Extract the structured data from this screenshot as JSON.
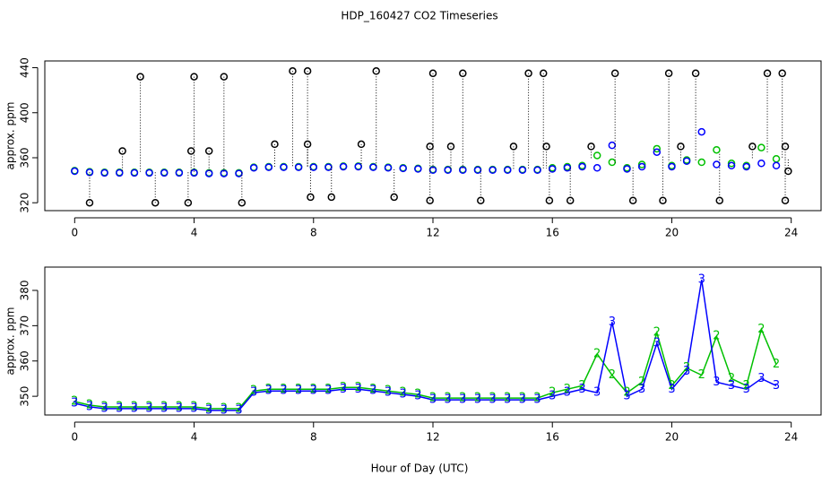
{
  "chart_data": [
    {
      "type": "scatter",
      "title": "HDP_160427  CO2 Timeseries",
      "ylabel": "approx. ppm",
      "xlim": [
        -1,
        25
      ],
      "ylim": [
        313,
        446
      ],
      "xticks": [
        0,
        4,
        8,
        12,
        16,
        20,
        24
      ],
      "yticks": [
        320,
        360,
        400,
        440
      ],
      "x": [
        0,
        0.5,
        1,
        1.5,
        2,
        2.5,
        3,
        3.5,
        4,
        4.5,
        5,
        5.5,
        6,
        6.5,
        7,
        7.5,
        8,
        8.5,
        9,
        9.5,
        10,
        10.5,
        11,
        11.5,
        12,
        12.5,
        13,
        13.5,
        14,
        14.5,
        15,
        15.5,
        16,
        16.5,
        17,
        17.5,
        18,
        18.5,
        19,
        19.5,
        20,
        20.5,
        21,
        21.5,
        22,
        22.5,
        23,
        23.5
      ],
      "series": [
        {
          "color": "#00c000",
          "values": [
            348.5,
            347.5,
            347,
            347,
            347,
            347,
            347,
            347,
            347,
            346.5,
            346.5,
            346.5,
            351.5,
            352,
            352,
            352,
            352,
            352,
            352.5,
            352.5,
            352,
            351.5,
            351,
            350.5,
            349.5,
            349.5,
            349.5,
            349.5,
            349.5,
            349.5,
            349.5,
            349.5,
            351,
            352,
            353,
            362,
            356,
            351,
            354,
            368,
            353,
            358,
            356,
            367,
            355,
            353,
            369,
            359
          ]
        },
        {
          "color": "#0000ff",
          "values": [
            348,
            347,
            346.5,
            346.5,
            346.5,
            346.5,
            346.5,
            346.5,
            346.5,
            346,
            346,
            346,
            351,
            351.5,
            351.5,
            351.5,
            351.5,
            351.5,
            352,
            352,
            351.5,
            351,
            350.5,
            350,
            349,
            349,
            349,
            349,
            349,
            349,
            349,
            349,
            350,
            351,
            352,
            351,
            371,
            350,
            352,
            365,
            352,
            357,
            383,
            354,
            353,
            352,
            355,
            353
          ]
        },
        {
          "color": "#000000",
          "drop": true,
          "x": [
            0.5,
            1.6,
            2.2,
            2.7,
            3.8,
            3.9,
            4,
            4.5,
            5,
            5.6,
            6.7,
            7.3,
            7.8,
            7.8,
            7.9,
            8.6,
            9.6,
            10.1,
            10.7,
            11.9,
            11.9,
            12,
            12.6,
            13,
            13.6,
            14.7,
            15.2,
            15.7,
            15.8,
            15.9,
            16.6,
            17.3,
            18.1,
            18.7,
            19.7,
            19.9,
            20.3,
            20.8,
            21.6,
            22.7,
            23.2,
            23.7,
            23.8,
            23.8,
            23.9
          ],
          "values": [
            320,
            366,
            432,
            320,
            320,
            366,
            432,
            366,
            432,
            320,
            372,
            437,
            437,
            372,
            325,
            325,
            372,
            437,
            325,
            322,
            370,
            435,
            370,
            435,
            322,
            370,
            435,
            435,
            370,
            322,
            322,
            370,
            435,
            322,
            322,
            435,
            370,
            435,
            322,
            370,
            435,
            435,
            370,
            322,
            348
          ]
        }
      ]
    },
    {
      "type": "line",
      "xlabel": "Hour of Day (UTC)",
      "ylabel": "approx. ppm",
      "xlim": [
        -1,
        25
      ],
      "ylim": [
        344.7,
        386.6
      ],
      "xticks": [
        0,
        4,
        8,
        12,
        16,
        20,
        24
      ],
      "yticks": [
        350,
        360,
        370,
        380
      ],
      "x": [
        0,
        0.5,
        1,
        1.5,
        2,
        2.5,
        3,
        3.5,
        4,
        4.5,
        5,
        5.5,
        6,
        6.5,
        7,
        7.5,
        8,
        8.5,
        9,
        9.5,
        10,
        10.5,
        11,
        11.5,
        12,
        12.5,
        13,
        13.5,
        14,
        14.5,
        15,
        15.5,
        16,
        16.5,
        17,
        17.5,
        18,
        18.5,
        19,
        19.5,
        20,
        20.5,
        21,
        21.5,
        22,
        22.5,
        23,
        23.5
      ],
      "series": [
        {
          "name": "2",
          "color": "#00c000",
          "values": [
            348.5,
            347.5,
            347,
            347,
            347,
            347,
            347,
            347,
            347,
            346.5,
            346.5,
            346.5,
            351.5,
            352,
            352,
            352,
            352,
            352,
            352.5,
            352.5,
            352,
            351.5,
            351,
            350.5,
            349.5,
            349.5,
            349.5,
            349.5,
            349.5,
            349.5,
            349.5,
            349.5,
            351,
            352,
            353,
            362,
            356,
            351,
            354,
            368,
            353,
            358,
            356,
            367,
            355,
            353,
            369,
            359
          ]
        },
        {
          "name": "3",
          "color": "#0000ff",
          "values": [
            348,
            347,
            346.5,
            346.5,
            346.5,
            346.5,
            346.5,
            346.5,
            346.5,
            346,
            346,
            346,
            351,
            351.5,
            351.5,
            351.5,
            351.5,
            351.5,
            352,
            352,
            351.5,
            351,
            350.5,
            350,
            349,
            349,
            349,
            349,
            349,
            349,
            349,
            349,
            350,
            351,
            352,
            351,
            371,
            350,
            352,
            365,
            352,
            357,
            383,
            354,
            353,
            352,
            355,
            353
          ]
        }
      ]
    }
  ]
}
